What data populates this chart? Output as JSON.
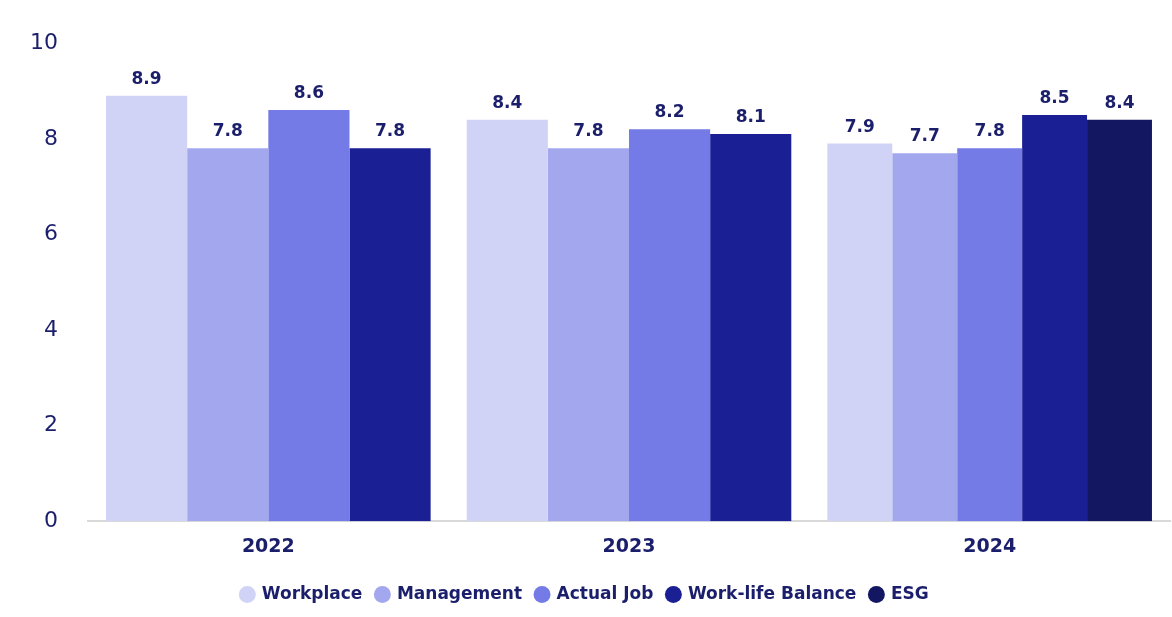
{
  "chart_data": {
    "type": "bar",
    "categories": [
      "2022",
      "2023",
      "2024"
    ],
    "series": [
      {
        "name": "Workplace",
        "color": "#d0d3f5",
        "values": [
          8.9,
          8.4,
          7.9
        ]
      },
      {
        "name": "Management",
        "color": "#a3a8ee",
        "values": [
          7.8,
          7.8,
          7.7
        ]
      },
      {
        "name": "Actual Job",
        "color": "#747ae6",
        "values": [
          8.6,
          8.2,
          7.8
        ]
      },
      {
        "name": "Work-life Balance",
        "color": "#1b1f94",
        "values": [
          7.8,
          8.1,
          8.5
        ]
      },
      {
        "name": "ESG",
        "color": "#131660",
        "values": [
          null,
          null,
          8.4
        ]
      }
    ],
    "ylim": [
      0,
      10
    ],
    "yticks": [
      0,
      2,
      4,
      6,
      8,
      10
    ],
    "grid": false,
    "legend": "bottom",
    "data_labels": true
  }
}
